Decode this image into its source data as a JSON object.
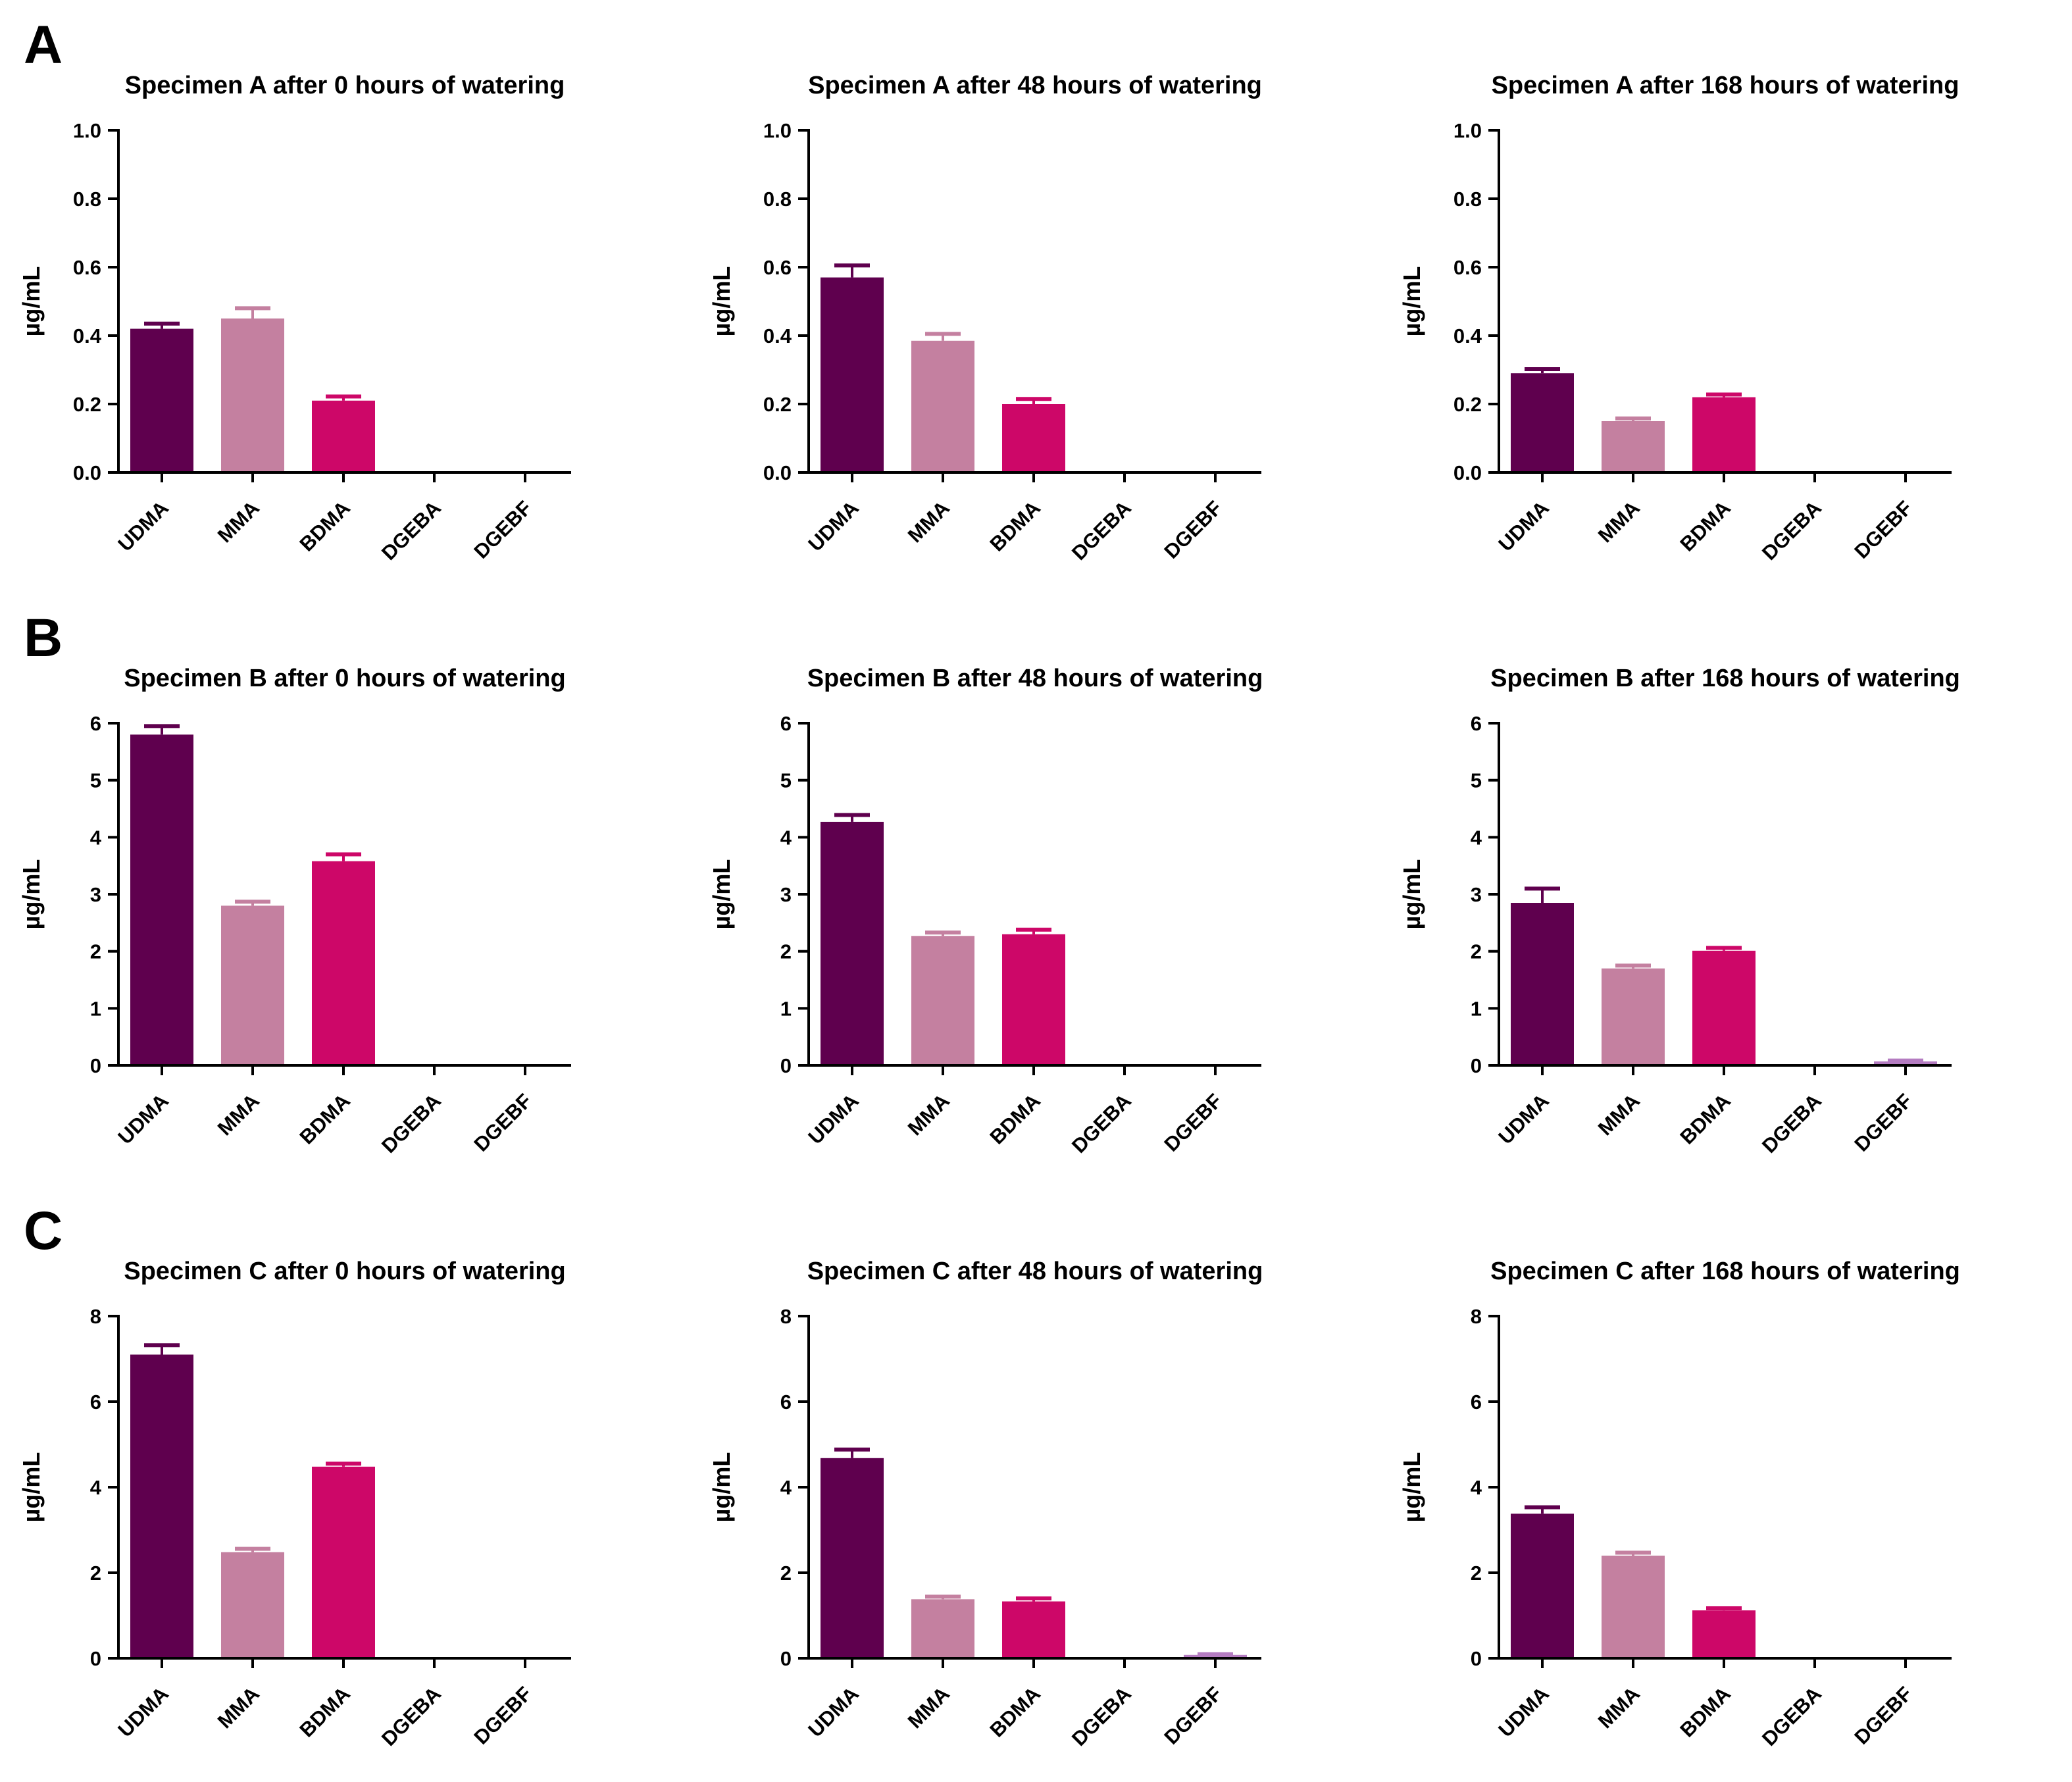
{
  "figure": {
    "background": "#ffffff",
    "panel_labels": [
      "A",
      "B",
      "C"
    ],
    "axis_color": "#000000",
    "text_color": "#000000",
    "categories": [
      "UDMA",
      "MMA",
      "BDMA",
      "DGEBA",
      "DGEBF"
    ],
    "bar_colors": [
      "#5F004E",
      "#C480A0",
      "#CD0768",
      "#888888",
      "#B47CC1"
    ],
    "ylabel": "µg/mL"
  },
  "chart_data": [
    {
      "type": "bar",
      "panel": "A",
      "title": "Specimen A after 0 hours of watering",
      "ylabel": "µg/mL",
      "categories": [
        "UDMA",
        "MMA",
        "BDMA",
        "DGEBA",
        "DGEBF"
      ],
      "values": [
        0.42,
        0.45,
        0.21,
        0,
        0
      ],
      "errors": [
        0.015,
        0.03,
        0.012,
        0,
        0
      ],
      "ylim": [
        0,
        1.0
      ],
      "yticks": [
        0,
        0.2,
        0.4,
        0.6,
        0.8,
        1.0
      ],
      "ytick_labels": [
        "0.0",
        "0.2",
        "0.4",
        "0.6",
        "0.8",
        "1.0"
      ]
    },
    {
      "type": "bar",
      "panel": "A",
      "title": "Specimen A after 48 hours of watering",
      "ylabel": "µg/mL",
      "categories": [
        "UDMA",
        "MMA",
        "BDMA",
        "DGEBA",
        "DGEBF"
      ],
      "values": [
        0.57,
        0.385,
        0.2,
        0,
        0
      ],
      "errors": [
        0.035,
        0.02,
        0.015,
        0,
        0
      ],
      "ylim": [
        0,
        1.0
      ],
      "yticks": [
        0,
        0.2,
        0.4,
        0.6,
        0.8,
        1.0
      ],
      "ytick_labels": [
        "0.0",
        "0.2",
        "0.4",
        "0.6",
        "0.8",
        "1.0"
      ]
    },
    {
      "type": "bar",
      "panel": "A",
      "title": "Specimen A after 168 hours of watering",
      "ylabel": "µg/mL",
      "categories": [
        "UDMA",
        "MMA",
        "BDMA",
        "DGEBA",
        "DGEBF"
      ],
      "values": [
        0.29,
        0.15,
        0.22,
        0,
        0
      ],
      "errors": [
        0.012,
        0.008,
        0.008,
        0,
        0
      ],
      "ylim": [
        0,
        1.0
      ],
      "yticks": [
        0,
        0.2,
        0.4,
        0.6,
        0.8,
        1.0
      ],
      "ytick_labels": [
        "0.0",
        "0.2",
        "0.4",
        "0.6",
        "0.8",
        "1.0"
      ]
    },
    {
      "type": "bar",
      "panel": "B",
      "title": "Specimen B after 0 hours of watering",
      "ylabel": "µg/mL",
      "categories": [
        "UDMA",
        "MMA",
        "BDMA",
        "DGEBA",
        "DGEBF"
      ],
      "values": [
        5.8,
        2.8,
        3.58,
        0,
        0
      ],
      "errors": [
        0.15,
        0.07,
        0.12,
        0,
        0
      ],
      "ylim": [
        0,
        6
      ],
      "yticks": [
        0,
        1,
        2,
        3,
        4,
        5,
        6
      ],
      "ytick_labels": [
        "0",
        "1",
        "2",
        "3",
        "4",
        "5",
        "6"
      ]
    },
    {
      "type": "bar",
      "panel": "B",
      "title": "Specimen B after 48 hours of watering",
      "ylabel": "µg/mL",
      "categories": [
        "UDMA",
        "MMA",
        "BDMA",
        "DGEBA",
        "DGEBF"
      ],
      "values": [
        4.27,
        2.27,
        2.3,
        0,
        0
      ],
      "errors": [
        0.12,
        0.06,
        0.08,
        0,
        0
      ],
      "ylim": [
        0,
        6
      ],
      "yticks": [
        0,
        1,
        2,
        3,
        4,
        5,
        6
      ],
      "ytick_labels": [
        "0",
        "1",
        "2",
        "3",
        "4",
        "5",
        "6"
      ]
    },
    {
      "type": "bar",
      "panel": "B",
      "title": "Specimen B after 168 hours of watering",
      "ylabel": "µg/mL",
      "categories": [
        "UDMA",
        "MMA",
        "BDMA",
        "DGEBA",
        "DGEBF"
      ],
      "values": [
        2.85,
        1.7,
        2.01,
        0,
        0.07
      ],
      "errors": [
        0.25,
        0.05,
        0.05,
        0,
        0.015
      ],
      "ylim": [
        0,
        6
      ],
      "yticks": [
        0,
        1,
        2,
        3,
        4,
        5,
        6
      ],
      "ytick_labels": [
        "0",
        "1",
        "2",
        "3",
        "4",
        "5",
        "6"
      ]
    },
    {
      "type": "bar",
      "panel": "C",
      "title": "Specimen C after 0 hours of watering",
      "ylabel": "µg/mL",
      "categories": [
        "UDMA",
        "MMA",
        "BDMA",
        "DGEBA",
        "DGEBF"
      ],
      "values": [
        7.1,
        2.48,
        4.48,
        0,
        0
      ],
      "errors": [
        0.22,
        0.08,
        0.07,
        0,
        0
      ],
      "ylim": [
        0,
        8
      ],
      "yticks": [
        0,
        2,
        4,
        6,
        8
      ],
      "ytick_labels": [
        "0",
        "2",
        "4",
        "6",
        "8"
      ]
    },
    {
      "type": "bar",
      "panel": "C",
      "title": "Specimen C after 48 hours of watering",
      "ylabel": "µg/mL",
      "categories": [
        "UDMA",
        "MMA",
        "BDMA",
        "DGEBA",
        "DGEBF"
      ],
      "values": [
        4.68,
        1.38,
        1.33,
        0,
        0.08
      ],
      "errors": [
        0.2,
        0.06,
        0.07,
        0,
        0.015
      ],
      "ylim": [
        0,
        8
      ],
      "yticks": [
        0,
        2,
        4,
        6,
        8
      ],
      "ytick_labels": [
        "0",
        "2",
        "4",
        "6",
        "8"
      ]
    },
    {
      "type": "bar",
      "panel": "C",
      "title": "Specimen C after 168 hours of watering",
      "ylabel": "µg/mL",
      "categories": [
        "UDMA",
        "MMA",
        "BDMA",
        "DGEBA",
        "DGEBF"
      ],
      "values": [
        3.38,
        2.4,
        1.12,
        0,
        0
      ],
      "errors": [
        0.15,
        0.07,
        0.05,
        0,
        0
      ],
      "ylim": [
        0,
        8
      ],
      "yticks": [
        0,
        2,
        4,
        6,
        8
      ],
      "ytick_labels": [
        "0",
        "2",
        "4",
        "6",
        "8"
      ]
    }
  ]
}
